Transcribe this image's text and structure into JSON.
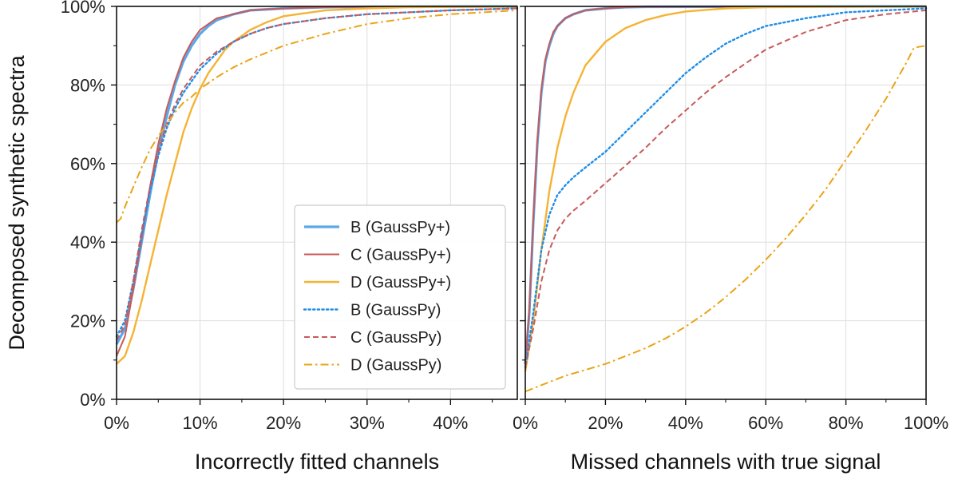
{
  "chart_data": [
    {
      "type": "line",
      "panel": "left",
      "xlabel": "Incorrectly fitted channels",
      "ylabel": "Decomposed synthetic spectra",
      "xlim": [
        0,
        0.48
      ],
      "ylim": [
        0,
        1.0
      ],
      "xticks": [
        0,
        0.1,
        0.2,
        0.3,
        0.4
      ],
      "xtick_labels": [
        "0%",
        "10%",
        "20%",
        "30%",
        "40%"
      ],
      "yticks": [
        0,
        0.2,
        0.4,
        0.6,
        0.8,
        1.0
      ],
      "ytick_labels": [
        "0%",
        "20%",
        "40%",
        "60%",
        "80%",
        "100%"
      ],
      "grid": true,
      "legend": "lower-right",
      "series": [
        {
          "name": "B (GaussPy+)",
          "color": "#5aa8e8",
          "style": "solid",
          "width": 3.2,
          "x": [
            0,
            0.01,
            0.02,
            0.03,
            0.04,
            0.05,
            0.06,
            0.07,
            0.08,
            0.09,
            0.1,
            0.11,
            0.12,
            0.14,
            0.16,
            0.2,
            0.25,
            0.3,
            0.48
          ],
          "y": [
            0.14,
            0.18,
            0.28,
            0.4,
            0.52,
            0.63,
            0.72,
            0.8,
            0.86,
            0.9,
            0.93,
            0.95,
            0.965,
            0.98,
            0.99,
            0.995,
            0.998,
            0.999,
            1.0
          ]
        },
        {
          "name": "C (GaussPy+)",
          "color": "#c85a5a",
          "style": "solid",
          "width": 2,
          "x": [
            0,
            0.01,
            0.02,
            0.03,
            0.04,
            0.05,
            0.06,
            0.07,
            0.08,
            0.09,
            0.1,
            0.11,
            0.12,
            0.14,
            0.16,
            0.2,
            0.25,
            0.3,
            0.48
          ],
          "y": [
            0.11,
            0.16,
            0.28,
            0.41,
            0.54,
            0.65,
            0.74,
            0.81,
            0.87,
            0.91,
            0.94,
            0.955,
            0.97,
            0.98,
            0.99,
            0.995,
            0.998,
            0.999,
            1.0
          ]
        },
        {
          "name": "D (GaussPy+)",
          "color": "#f5b335",
          "style": "solid",
          "width": 2.4,
          "x": [
            0,
            0.01,
            0.02,
            0.03,
            0.04,
            0.05,
            0.06,
            0.07,
            0.08,
            0.09,
            0.1,
            0.11,
            0.12,
            0.13,
            0.14,
            0.16,
            0.18,
            0.2,
            0.25,
            0.3,
            0.35,
            0.48
          ],
          "y": [
            0.09,
            0.11,
            0.17,
            0.25,
            0.34,
            0.43,
            0.52,
            0.6,
            0.68,
            0.74,
            0.79,
            0.83,
            0.86,
            0.89,
            0.91,
            0.94,
            0.96,
            0.975,
            0.99,
            0.995,
            0.998,
            1.0
          ]
        },
        {
          "name": "B (GaussPy)",
          "color": "#1f8ee8",
          "style": "dotted",
          "width": 2.4,
          "x": [
            0,
            0.01,
            0.02,
            0.03,
            0.04,
            0.05,
            0.06,
            0.07,
            0.08,
            0.09,
            0.1,
            0.12,
            0.14,
            0.16,
            0.18,
            0.2,
            0.25,
            0.3,
            0.35,
            0.4,
            0.48
          ],
          "y": [
            0.16,
            0.2,
            0.3,
            0.42,
            0.53,
            0.62,
            0.69,
            0.74,
            0.78,
            0.81,
            0.84,
            0.88,
            0.91,
            0.93,
            0.945,
            0.955,
            0.97,
            0.98,
            0.985,
            0.99,
            0.995
          ]
        },
        {
          "name": "C (GaussPy)",
          "color": "#c85a5a",
          "style": "dashed",
          "width": 2,
          "x": [
            0,
            0.01,
            0.02,
            0.03,
            0.04,
            0.05,
            0.06,
            0.07,
            0.08,
            0.09,
            0.1,
            0.12,
            0.14,
            0.16,
            0.18,
            0.2,
            0.25,
            0.3,
            0.35,
            0.4,
            0.48
          ],
          "y": [
            0.15,
            0.19,
            0.3,
            0.43,
            0.54,
            0.63,
            0.7,
            0.75,
            0.79,
            0.82,
            0.85,
            0.885,
            0.91,
            0.93,
            0.945,
            0.955,
            0.97,
            0.98,
            0.985,
            0.99,
            0.995
          ]
        },
        {
          "name": "D (GaussPy)",
          "color": "#eaa415",
          "style": "dashdot",
          "width": 2,
          "x": [
            0,
            0.005,
            0.01,
            0.02,
            0.03,
            0.04,
            0.05,
            0.06,
            0.07,
            0.08,
            0.09,
            0.1,
            0.12,
            0.14,
            0.16,
            0.2,
            0.25,
            0.3,
            0.35,
            0.4,
            0.48
          ],
          "y": [
            0.45,
            0.46,
            0.49,
            0.54,
            0.59,
            0.635,
            0.67,
            0.7,
            0.73,
            0.755,
            0.77,
            0.79,
            0.82,
            0.845,
            0.865,
            0.9,
            0.93,
            0.955,
            0.97,
            0.98,
            0.99
          ]
        }
      ]
    },
    {
      "type": "line",
      "panel": "right",
      "xlabel": "Missed channels with true signal",
      "ylabel": "",
      "xlim": [
        0,
        1.0
      ],
      "ylim": [
        0,
        1.0
      ],
      "xticks": [
        0,
        0.2,
        0.4,
        0.6,
        0.8,
        1.0
      ],
      "xtick_labels": [
        "0%",
        "20%",
        "40%",
        "60%",
        "80%",
        "100%"
      ],
      "yticks": [
        0,
        0.2,
        0.4,
        0.6,
        0.8,
        1.0
      ],
      "grid": true,
      "series": [
        {
          "name": "B (GaussPy+)",
          "color": "#5aa8e8",
          "style": "solid",
          "width": 3.2,
          "x": [
            0,
            0.01,
            0.02,
            0.03,
            0.04,
            0.05,
            0.06,
            0.07,
            0.08,
            0.1,
            0.12,
            0.15,
            0.2,
            0.25,
            0.3,
            1.0
          ],
          "y": [
            0.09,
            0.22,
            0.45,
            0.65,
            0.78,
            0.86,
            0.9,
            0.93,
            0.95,
            0.97,
            0.98,
            0.99,
            0.995,
            0.998,
            0.999,
            1.0
          ]
        },
        {
          "name": "C (GaussPy+)",
          "color": "#c85a5a",
          "style": "solid",
          "width": 2,
          "x": [
            0,
            0.01,
            0.02,
            0.03,
            0.04,
            0.05,
            0.06,
            0.07,
            0.08,
            0.1,
            0.12,
            0.15,
            0.2,
            0.25,
            0.3,
            1.0
          ],
          "y": [
            0.09,
            0.23,
            0.46,
            0.66,
            0.79,
            0.865,
            0.905,
            0.935,
            0.95,
            0.97,
            0.98,
            0.99,
            0.995,
            0.998,
            0.999,
            1.0
          ]
        },
        {
          "name": "D (GaussPy+)",
          "color": "#f5b335",
          "style": "solid",
          "width": 2.4,
          "x": [
            0,
            0.02,
            0.04,
            0.06,
            0.08,
            0.1,
            0.12,
            0.15,
            0.2,
            0.25,
            0.3,
            0.35,
            0.4,
            0.5,
            0.6,
            1.0
          ],
          "y": [
            0.07,
            0.2,
            0.38,
            0.53,
            0.64,
            0.72,
            0.78,
            0.85,
            0.91,
            0.945,
            0.965,
            0.978,
            0.987,
            0.995,
            0.998,
            1.0
          ]
        },
        {
          "name": "B (GaussPy)",
          "color": "#1f8ee8",
          "style": "dotted",
          "width": 2.4,
          "x": [
            0,
            0.02,
            0.04,
            0.06,
            0.08,
            0.1,
            0.12,
            0.15,
            0.2,
            0.25,
            0.3,
            0.35,
            0.4,
            0.45,
            0.5,
            0.55,
            0.6,
            0.7,
            0.8,
            0.9,
            1.0
          ],
          "y": [
            0.08,
            0.22,
            0.38,
            0.47,
            0.52,
            0.545,
            0.565,
            0.59,
            0.63,
            0.68,
            0.73,
            0.78,
            0.83,
            0.87,
            0.905,
            0.93,
            0.95,
            0.97,
            0.985,
            0.99,
            0.995
          ]
        },
        {
          "name": "C (GaussPy)",
          "color": "#c85a5a",
          "style": "dashed",
          "width": 2,
          "x": [
            0,
            0.02,
            0.04,
            0.06,
            0.08,
            0.1,
            0.12,
            0.15,
            0.2,
            0.25,
            0.3,
            0.35,
            0.4,
            0.45,
            0.5,
            0.55,
            0.6,
            0.7,
            0.8,
            0.9,
            1.0
          ],
          "y": [
            0.08,
            0.18,
            0.3,
            0.38,
            0.43,
            0.46,
            0.48,
            0.505,
            0.55,
            0.595,
            0.64,
            0.69,
            0.735,
            0.78,
            0.82,
            0.855,
            0.89,
            0.935,
            0.965,
            0.98,
            0.99
          ]
        },
        {
          "name": "D (GaussPy)",
          "color": "#eaa415",
          "style": "dashdot",
          "width": 2,
          "x": [
            0,
            0.05,
            0.1,
            0.15,
            0.2,
            0.25,
            0.3,
            0.35,
            0.4,
            0.45,
            0.5,
            0.55,
            0.6,
            0.65,
            0.7,
            0.75,
            0.8,
            0.85,
            0.9,
            0.95,
            0.97,
            1.0
          ],
          "y": [
            0.02,
            0.04,
            0.06,
            0.075,
            0.09,
            0.11,
            0.13,
            0.155,
            0.185,
            0.22,
            0.26,
            0.305,
            0.355,
            0.41,
            0.47,
            0.535,
            0.61,
            0.685,
            0.765,
            0.855,
            0.895,
            0.9
          ]
        }
      ]
    }
  ]
}
